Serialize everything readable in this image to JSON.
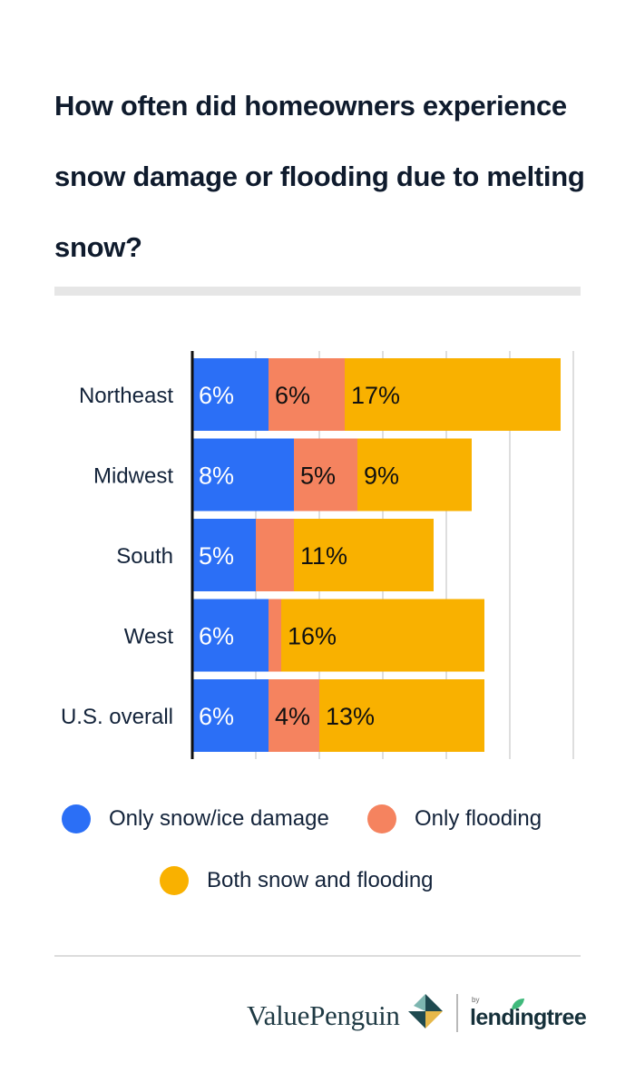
{
  "title": "How often did homeowners experience snow damage or flooding due to melting snow?",
  "chart_data": {
    "type": "bar",
    "orientation": "horizontal",
    "stacked": true,
    "title": "How often did homeowners experience snow damage or flooding due to melting snow?",
    "categories": [
      "Northeast",
      "Midwest",
      "South",
      "West",
      "U.S. overall"
    ],
    "series": [
      {
        "name": "Only snow/ice damage",
        "color": "#2b6ff6",
        "values": [
          6,
          8,
          5,
          6,
          6
        ],
        "labels": [
          "6%",
          "8%",
          "5%",
          "6%",
          "6%"
        ]
      },
      {
        "name": "Only flooding",
        "color": "#f5835f",
        "values": [
          6,
          5,
          3,
          1,
          4
        ],
        "labels": [
          "6%",
          "5%",
          "",
          "",
          "4%"
        ]
      },
      {
        "name": "Both snow and flooding",
        "color": "#f9b100",
        "values": [
          17,
          9,
          11,
          16,
          13
        ],
        "labels": [
          "17%",
          "9%",
          "11%",
          "16%",
          "13%"
        ]
      }
    ],
    "xlim": [
      0,
      30
    ],
    "grid": true,
    "legend": "bottom"
  },
  "legend": [
    {
      "label": "Only snow/ice damage",
      "color": "#2b6ff6"
    },
    {
      "label": "Only flooding",
      "color": "#f5835f"
    },
    {
      "label": "Both snow and flooding",
      "color": "#f9b100"
    }
  ],
  "footer": {
    "brand": "ValuePenguin",
    "by": "by",
    "partner": "lendingtree"
  }
}
